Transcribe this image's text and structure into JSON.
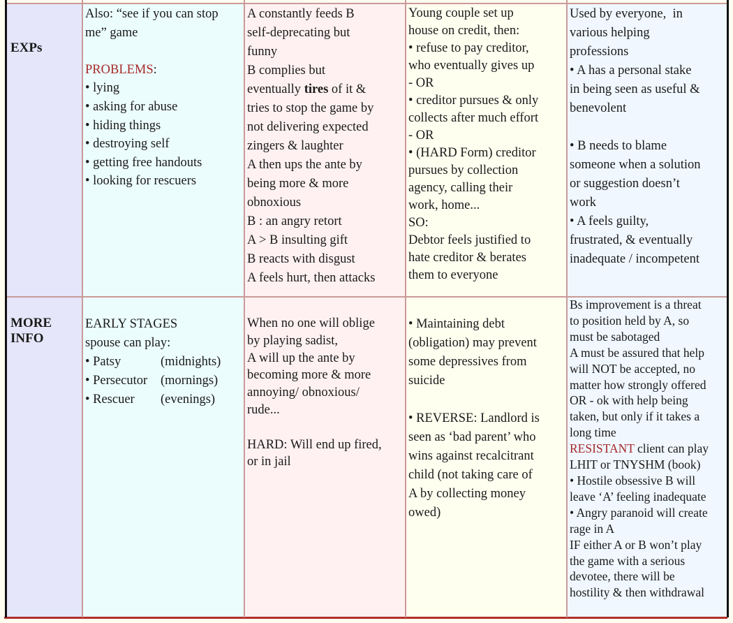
{
  "colors": {
    "label_bg": "#e6e6fb",
    "col1_bg": "#ecfdfd",
    "col2_bg": "#fff1f2",
    "col3_bg": "#fffff0",
    "col4_bg": "#f0f7ff",
    "grid": "#c99a98",
    "accent_red": "#a52a2a",
    "bottom_border": "#b0302a"
  },
  "rows": [
    {
      "label": "EXPs",
      "cells": [
        {
          "lines": [
            "Also: “see if you can stop",
            "me” game",
            "",
            [
              {
                "t": "PROBLEMS",
                "c": "red"
              },
              {
                "t": ":"
              }
            ],
            "• lying",
            "• asking for abuse",
            "• hiding things",
            "• destroying self",
            "• getting free handouts",
            "• looking for rescuers"
          ]
        },
        {
          "lines": [
            "A constantly feeds B",
            "self-deprecating but",
            "funny",
            "B complies but",
            [
              {
                "t": "eventually "
              },
              {
                "t": "tires",
                "c": "bold"
              },
              {
                "t": " of it &"
              }
            ],
            "tries to stop the game by",
            "not delivering expected",
            "zingers & laughter",
            "A then ups the ante by",
            "being more & more",
            "obnoxious",
            "B : an angry retort",
            "A > B insulting gift",
            "B reacts with disgust",
            "A feels hurt, then attacks"
          ]
        },
        {
          "lines": [
            "Young couple set up",
            "house on credit, then:",
            "• refuse to pay creditor,",
            "who eventually gives up",
            "- OR",
            "• creditor pursues & only",
            "collects after much effort",
            "- OR",
            "• (HARD Form) creditor",
            "pursues by collection",
            "agency, calling their",
            "work, home...",
            "SO:",
            "Debtor feels justified to",
            "hate creditor & berates",
            "them to everyone"
          ]
        },
        {
          "lines": [
            "Used by everyone,  in",
            "various helping",
            "professions",
            "• A has a personal stake",
            "in being seen as useful &",
            "benevolent",
            "",
            "• B needs to blame",
            "someone when a solution",
            "or suggestion doesn’t",
            "work",
            "• A feels guilty,",
            "frustrated, & eventually",
            "inadequate / incompetent"
          ]
        }
      ]
    },
    {
      "label": "MORE INFO",
      "cells": [
        {
          "lines": [
            "EARLY STAGES",
            "spouse can play:",
            [
              {
                "t": "• Patsy",
                "c": "tab"
              },
              {
                "t": "(midnights)"
              }
            ],
            [
              {
                "t": "• Persecutor",
                "c": "tab"
              },
              {
                "t": "(mornings)"
              }
            ],
            [
              {
                "t": "• Rescuer",
                "c": "tab"
              },
              {
                "t": "(evenings)"
              }
            ]
          ]
        },
        {
          "lines": [
            "When no one will oblige",
            "by playing sadist,",
            "A will up the ante by",
            "becoming more & more",
            "annoying/ obnoxious/",
            "rude...",
            "",
            "HARD: Will end up fired,",
            "or in jail"
          ]
        },
        {
          "lines": [
            "• Maintaining debt",
            "(obligation) may prevent",
            "some depressives from",
            "suicide",
            "",
            "• REVERSE: Landlord is",
            "seen as ‘bad parent’ who",
            "wins against recalcitrant",
            "child (not taking care of",
            "A by collecting money",
            "owed)"
          ]
        },
        {
          "lines": [
            "Bs improvement is a threat",
            "to position held by A, so",
            "must be sabotaged",
            "A must be assured that help",
            "will NOT be accepted, no",
            "matter how strongly offered",
            "OR - ok with help being",
            "taken, but only if it takes a",
            "long time",
            [
              {
                "t": "RESISTANT",
                "c": "red"
              },
              {
                "t": " client can play"
              }
            ],
            "LHIT or TNYSHM (book)",
            "• Hostile obsessive B will",
            "leave ‘A’ feeling inadequate",
            "• Angry paranoid will create",
            "rage in A",
            "IF either A or B won’t play",
            "the game with a serious",
            "devotee, there will be",
            "hostility & then withdrawal"
          ]
        }
      ]
    }
  ]
}
